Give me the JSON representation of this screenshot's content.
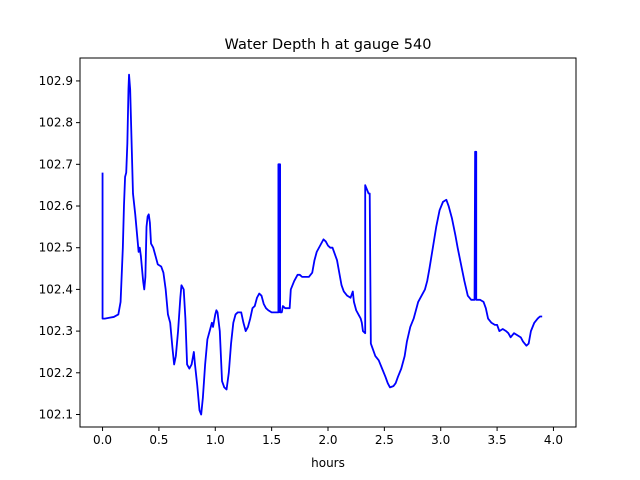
{
  "chart_data": {
    "type": "line",
    "title": "Water Depth h at gauge 540",
    "xlabel": "hours",
    "ylabel": "",
    "xlim": [
      -0.2,
      4.2
    ],
    "ylim": [
      102.07,
      102.955
    ],
    "x_ticks": [
      0.0,
      0.5,
      1.0,
      1.5,
      2.0,
      2.5,
      3.0,
      3.5,
      4.0
    ],
    "x_tick_labels": [
      "0.0",
      "0.5",
      "1.0",
      "1.5",
      "2.0",
      "2.5",
      "3.0",
      "3.5",
      "4.0"
    ],
    "y_ticks": [
      102.1,
      102.2,
      102.3,
      102.4,
      102.5,
      102.6,
      102.7,
      102.8,
      102.9
    ],
    "y_tick_labels": [
      "102.1",
      "102.2",
      "102.3",
      "102.4",
      "102.5",
      "102.6",
      "102.7",
      "102.8",
      "102.9"
    ],
    "grid": false,
    "legend": "none",
    "colors": {
      "line": "#0000ff",
      "axes": "#000000",
      "background": "#ffffff"
    },
    "series": [
      {
        "points": [
          [
            0.0,
            102.68
          ],
          [
            0.0,
            102.33
          ],
          [
            0.02,
            102.33
          ],
          [
            0.06,
            102.332
          ],
          [
            0.1,
            102.334
          ],
          [
            0.14,
            102.34
          ],
          [
            0.16,
            102.37
          ],
          [
            0.18,
            102.5
          ],
          [
            0.19,
            102.6
          ],
          [
            0.2,
            102.67
          ],
          [
            0.21,
            102.68
          ],
          [
            0.22,
            102.75
          ],
          [
            0.23,
            102.88
          ],
          [
            0.235,
            102.915
          ],
          [
            0.245,
            102.88
          ],
          [
            0.26,
            102.73
          ],
          [
            0.27,
            102.63
          ],
          [
            0.29,
            102.58
          ],
          [
            0.31,
            102.52
          ],
          [
            0.32,
            102.49
          ],
          [
            0.33,
            102.5
          ],
          [
            0.34,
            102.48
          ],
          [
            0.36,
            102.42
          ],
          [
            0.37,
            102.4
          ],
          [
            0.38,
            102.43
          ],
          [
            0.39,
            102.55
          ],
          [
            0.4,
            102.575
          ],
          [
            0.41,
            102.58
          ],
          [
            0.42,
            102.56
          ],
          [
            0.43,
            102.51
          ],
          [
            0.45,
            102.5
          ],
          [
            0.47,
            102.48
          ],
          [
            0.49,
            102.46
          ],
          [
            0.52,
            102.455
          ],
          [
            0.54,
            102.44
          ],
          [
            0.56,
            102.4
          ],
          [
            0.58,
            102.34
          ],
          [
            0.6,
            102.32
          ],
          [
            0.62,
            102.26
          ],
          [
            0.635,
            102.22
          ],
          [
            0.65,
            102.24
          ],
          [
            0.67,
            102.3
          ],
          [
            0.69,
            102.38
          ],
          [
            0.7,
            102.41
          ],
          [
            0.72,
            102.4
          ],
          [
            0.735,
            102.33
          ],
          [
            0.75,
            102.22
          ],
          [
            0.77,
            102.21
          ],
          [
            0.79,
            102.22
          ],
          [
            0.81,
            102.25
          ],
          [
            0.82,
            102.22
          ],
          [
            0.84,
            102.17
          ],
          [
            0.86,
            102.11
          ],
          [
            0.875,
            102.1
          ],
          [
            0.89,
            102.14
          ],
          [
            0.91,
            102.22
          ],
          [
            0.93,
            102.28
          ],
          [
            0.95,
            102.3
          ],
          [
            0.97,
            102.32
          ],
          [
            0.98,
            102.31
          ],
          [
            1.0,
            102.34
          ],
          [
            1.01,
            102.35
          ],
          [
            1.02,
            102.345
          ],
          [
            1.04,
            102.3
          ],
          [
            1.06,
            102.18
          ],
          [
            1.08,
            102.165
          ],
          [
            1.1,
            102.16
          ],
          [
            1.12,
            102.2
          ],
          [
            1.14,
            102.27
          ],
          [
            1.16,
            102.32
          ],
          [
            1.18,
            102.34
          ],
          [
            1.2,
            102.345
          ],
          [
            1.23,
            102.345
          ],
          [
            1.25,
            102.32
          ],
          [
            1.27,
            102.3
          ],
          [
            1.29,
            102.31
          ],
          [
            1.31,
            102.33
          ],
          [
            1.33,
            102.355
          ],
          [
            1.35,
            102.36
          ],
          [
            1.37,
            102.38
          ],
          [
            1.39,
            102.39
          ],
          [
            1.41,
            102.385
          ],
          [
            1.43,
            102.365
          ],
          [
            1.45,
            102.355
          ],
          [
            1.47,
            102.35
          ],
          [
            1.5,
            102.345
          ],
          [
            1.56,
            102.345
          ],
          [
            1.56,
            102.7
          ],
          [
            1.575,
            102.7
          ],
          [
            1.575,
            102.345
          ],
          [
            1.59,
            102.345
          ],
          [
            1.6,
            102.36
          ],
          [
            1.62,
            102.355
          ],
          [
            1.66,
            102.355
          ],
          [
            1.67,
            102.4
          ],
          [
            1.7,
            102.42
          ],
          [
            1.73,
            102.435
          ],
          [
            1.75,
            102.435
          ],
          [
            1.77,
            102.43
          ],
          [
            1.8,
            102.43
          ],
          [
            1.83,
            102.43
          ],
          [
            1.86,
            102.44
          ],
          [
            1.88,
            102.47
          ],
          [
            1.9,
            102.49
          ],
          [
            1.93,
            102.505
          ],
          [
            1.96,
            102.52
          ],
          [
            1.98,
            102.515
          ],
          [
            2.0,
            102.505
          ],
          [
            2.02,
            102.5
          ],
          [
            2.04,
            102.5
          ],
          [
            2.06,
            102.485
          ],
          [
            2.08,
            102.47
          ],
          [
            2.1,
            102.44
          ],
          [
            2.12,
            102.41
          ],
          [
            2.14,
            102.395
          ],
          [
            2.17,
            102.385
          ],
          [
            2.2,
            102.38
          ],
          [
            2.22,
            102.395
          ],
          [
            2.23,
            102.37
          ],
          [
            2.25,
            102.35
          ],
          [
            2.27,
            102.34
          ],
          [
            2.29,
            102.33
          ],
          [
            2.3,
            102.32
          ],
          [
            2.31,
            102.3
          ],
          [
            2.33,
            102.295
          ],
          [
            2.33,
            102.65
          ],
          [
            2.36,
            102.63
          ],
          [
            2.37,
            102.63
          ],
          [
            2.38,
            102.27
          ],
          [
            2.4,
            102.255
          ],
          [
            2.42,
            102.24
          ],
          [
            2.45,
            102.23
          ],
          [
            2.48,
            102.21
          ],
          [
            2.51,
            102.19
          ],
          [
            2.53,
            102.175
          ],
          [
            2.55,
            102.165
          ],
          [
            2.58,
            102.168
          ],
          [
            2.6,
            102.175
          ],
          [
            2.62,
            102.19
          ],
          [
            2.65,
            102.21
          ],
          [
            2.68,
            102.24
          ],
          [
            2.7,
            102.275
          ],
          [
            2.73,
            102.31
          ],
          [
            2.76,
            102.33
          ],
          [
            2.78,
            102.35
          ],
          [
            2.8,
            102.37
          ],
          [
            2.83,
            102.385
          ],
          [
            2.86,
            102.4
          ],
          [
            2.88,
            102.42
          ],
          [
            2.9,
            102.45
          ],
          [
            2.93,
            102.5
          ],
          [
            2.96,
            102.55
          ],
          [
            2.99,
            102.59
          ],
          [
            3.02,
            102.61
          ],
          [
            3.05,
            102.615
          ],
          [
            3.07,
            102.6
          ],
          [
            3.1,
            102.57
          ],
          [
            3.13,
            102.53
          ],
          [
            3.15,
            102.5
          ],
          [
            3.18,
            102.46
          ],
          [
            3.21,
            102.42
          ],
          [
            3.24,
            102.385
          ],
          [
            3.27,
            102.375
          ],
          [
            3.3,
            102.375
          ],
          [
            3.305,
            102.73
          ],
          [
            3.315,
            102.73
          ],
          [
            3.315,
            102.375
          ],
          [
            3.35,
            102.375
          ],
          [
            3.38,
            102.37
          ],
          [
            3.4,
            102.355
          ],
          [
            3.42,
            102.33
          ],
          [
            3.45,
            102.32
          ],
          [
            3.48,
            102.315
          ],
          [
            3.5,
            102.315
          ],
          [
            3.52,
            102.3
          ],
          [
            3.55,
            102.305
          ],
          [
            3.58,
            102.3
          ],
          [
            3.6,
            102.295
          ],
          [
            3.62,
            102.285
          ],
          [
            3.65,
            102.295
          ],
          [
            3.68,
            102.29
          ],
          [
            3.71,
            102.285
          ],
          [
            3.73,
            102.275
          ],
          [
            3.76,
            102.265
          ],
          [
            3.78,
            102.27
          ],
          [
            3.8,
            102.3
          ],
          [
            3.83,
            102.32
          ],
          [
            3.86,
            102.33
          ],
          [
            3.88,
            102.335
          ],
          [
            3.9,
            102.335
          ]
        ]
      }
    ]
  }
}
